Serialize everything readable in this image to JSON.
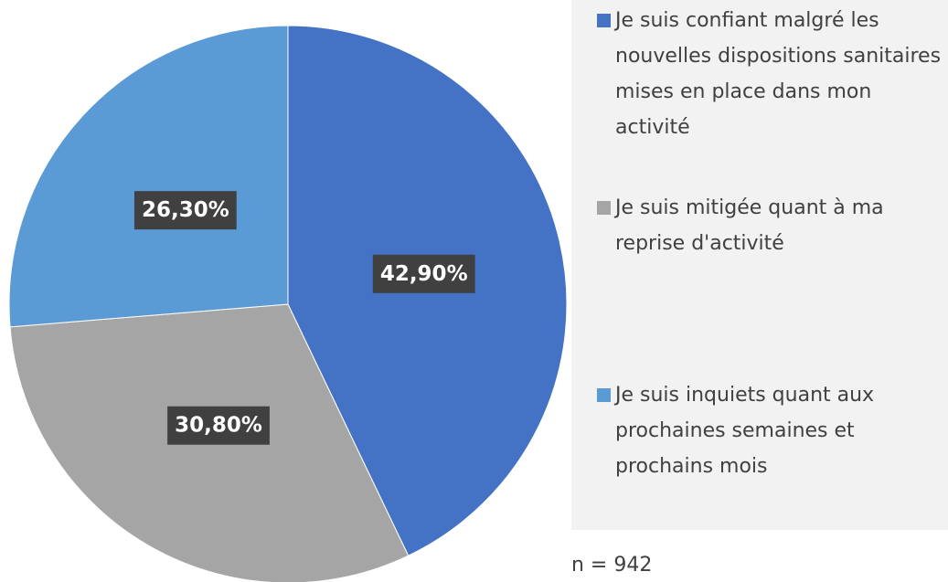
{
  "chart_data": {
    "type": "pie",
    "series": [
      {
        "name": "Je suis confiant malgré les nouvelles dispositions sanitaires mises en place dans mon activité",
        "color": "#4472c4"
      },
      {
        "name": "Je suis mitigée quant à ma reprise d'activité",
        "color": "#a5a5a5"
      },
      {
        "name": "Je suis inquiets quant aux prochaines semaines et prochains mois",
        "color": "#5b9bd5"
      }
    ],
    "values": [
      42.9,
      30.8,
      26.3
    ],
    "value_labels": [
      "42,90%",
      "30,80%",
      "26,30%"
    ],
    "legend": "right",
    "annotation": "n = 942"
  }
}
